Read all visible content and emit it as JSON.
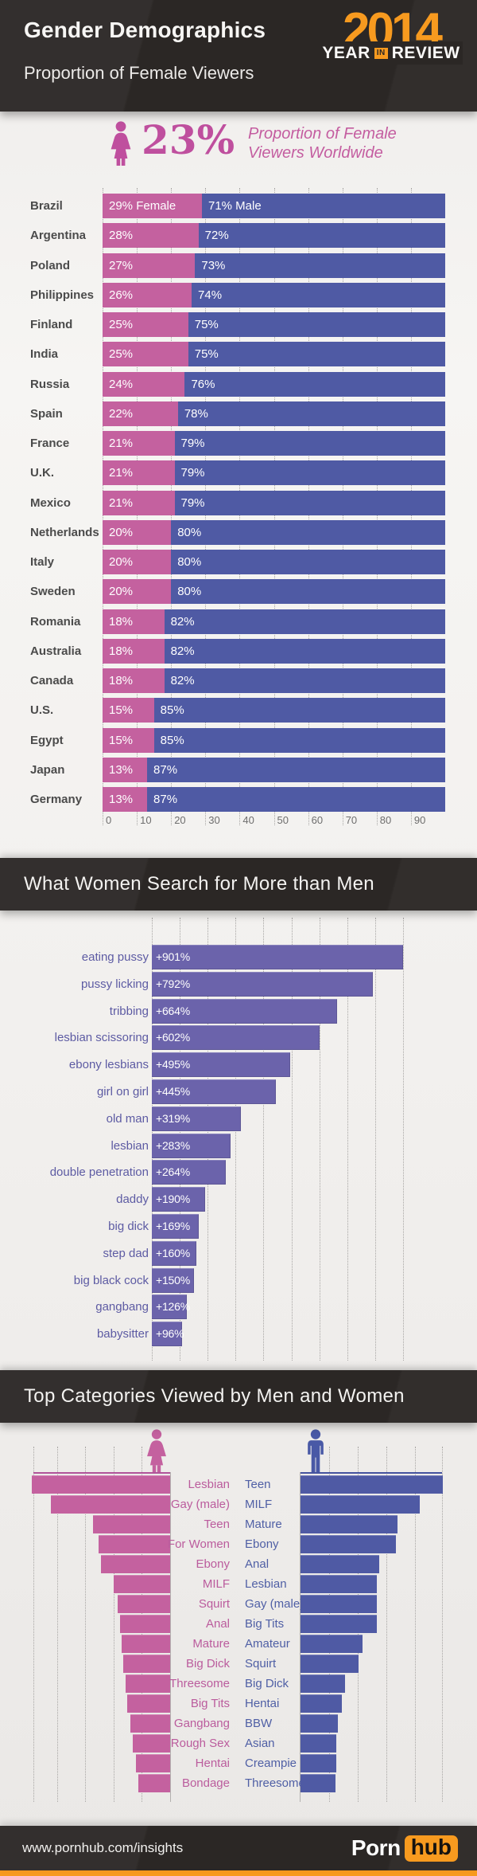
{
  "header": {
    "title": "Gender Demographics",
    "subtitle": "Proportion of Female Viewers",
    "logo": {
      "year": "2014",
      "year_word": "YEAR",
      "in_word": "IN",
      "review_word": "REVIEW"
    }
  },
  "stat": {
    "value": "23%",
    "caption_line1": "Proportion of Female",
    "caption_line2": "Viewers Worldwide"
  },
  "section_titles": {
    "search": "What Women Search for More than Men",
    "categories": "Top Categories Viewed by Men and Women"
  },
  "footer": {
    "url": "www.pornhub.com/insights",
    "brand_left": "Porn",
    "brand_right": "hub"
  },
  "colors": {
    "female_pink": "#c4619f",
    "male_blue": "#4f5aa4",
    "search_purple": "#6b63ab",
    "accent_orange": "#f79a1f",
    "dark_background": "#2b2725"
  },
  "chart_data": [
    {
      "id": "gender-by-country",
      "type": "bar",
      "variant": "stacked-100-horizontal",
      "title": "Proportion of Female Viewers by Country",
      "categories": [
        "Brazil",
        "Argentina",
        "Poland",
        "Philippines",
        "Finland",
        "India",
        "Russia",
        "Spain",
        "France",
        "U.K.",
        "Mexico",
        "Netherlands",
        "Italy",
        "Sweden",
        "Romania",
        "Australia",
        "Canada",
        "U.S.",
        "Egypt",
        "Japan",
        "Germany"
      ],
      "series": [
        {
          "name": "Female",
          "color": "#c4619f",
          "values": [
            29,
            28,
            27,
            26,
            25,
            25,
            24,
            22,
            21,
            21,
            21,
            20,
            20,
            20,
            18,
            18,
            18,
            15,
            15,
            13,
            13
          ],
          "labels": [
            "29% Female",
            "28%",
            "27%",
            "26%",
            "25%",
            "25%",
            "24%",
            "22%",
            "21%",
            "21%",
            "21%",
            "20%",
            "20%",
            "20%",
            "18%",
            "18%",
            "18%",
            "15%",
            "15%",
            "13%",
            "13%"
          ]
        },
        {
          "name": "Male",
          "color": "#4f5aa4",
          "values": [
            71,
            72,
            73,
            74,
            75,
            75,
            76,
            78,
            79,
            79,
            79,
            80,
            80,
            80,
            82,
            82,
            82,
            85,
            85,
            87,
            87
          ],
          "labels": [
            "71% Male",
            "72%",
            "73%",
            "74%",
            "75%",
            "75%",
            "76%",
            "78%",
            "79%",
            "79%",
            "79%",
            "80%",
            "80%",
            "80%",
            "82%",
            "82%",
            "82%",
            "85%",
            "85%",
            "87%",
            "87%"
          ]
        }
      ],
      "x_ticks": [
        "0",
        "10",
        "20",
        "30",
        "40",
        "50",
        "60",
        "70",
        "80",
        "90"
      ],
      "xlim": [
        0,
        100
      ],
      "grid": "dotted-ticks",
      "legend": "inline-first-row"
    },
    {
      "id": "women-search-more-than-men",
      "type": "bar",
      "variant": "horizontal",
      "title": "What Women Search for More than Men",
      "categories": [
        "eating pussy",
        "pussy licking",
        "tribbing",
        "lesbian scissoring",
        "ebony lesbians",
        "girl on girl",
        "old man",
        "lesbian",
        "double penetration",
        "daddy",
        "big dick",
        "step dad",
        "big black cock",
        "gangbang",
        "babysitter"
      ],
      "values": [
        901,
        792,
        664,
        602,
        495,
        445,
        319,
        283,
        264,
        190,
        169,
        160,
        150,
        126,
        96
      ],
      "value_labels": [
        "+901%",
        "+792%",
        "+664%",
        "+602%",
        "+495%",
        "+445%",
        "+319%",
        "+283%",
        "+264%",
        "+190%",
        "+169%",
        "+160%",
        "+150%",
        "+126%",
        "+96%"
      ],
      "xlim": [
        0,
        900
      ],
      "gridline_step": 100,
      "grid": "dotted"
    },
    {
      "id": "top-categories-by-gender",
      "type": "bar",
      "variant": "mirrored-horizontal",
      "title": "Top Categories Viewed by Men and Women",
      "women": {
        "icon": "female-icon",
        "color": "#c4619f",
        "categories": [
          "Lesbian",
          "Gay (male)",
          "Teen",
          "For Women",
          "Ebony",
          "MILF",
          "Squirt",
          "Anal",
          "Mature",
          "Big Dick",
          "Threesome",
          "Big Tits",
          "Gangbang",
          "Rough Sex",
          "Hentai",
          "Bondage"
        ],
        "values_relative_estimated": [
          100,
          86,
          56,
          52,
          50,
          41,
          38,
          36,
          35,
          34,
          32,
          31,
          29,
          27,
          25,
          23
        ]
      },
      "men": {
        "icon": "male-icon",
        "color": "#4f5aa4",
        "categories": [
          "Teen",
          "MILF",
          "Mature",
          "Ebony",
          "Anal",
          "Lesbian",
          "Gay (male)",
          "Big Tits",
          "Amateur",
          "Squirt",
          "Big Dick",
          "Hentai",
          "BBW",
          "Asian",
          "Creampie",
          "Threesome"
        ],
        "values_relative_estimated": [
          103,
          86,
          70,
          69,
          57,
          55,
          55,
          55,
          45,
          42,
          32,
          30,
          27,
          26,
          26,
          25
        ]
      },
      "grid": "dotted"
    }
  ]
}
